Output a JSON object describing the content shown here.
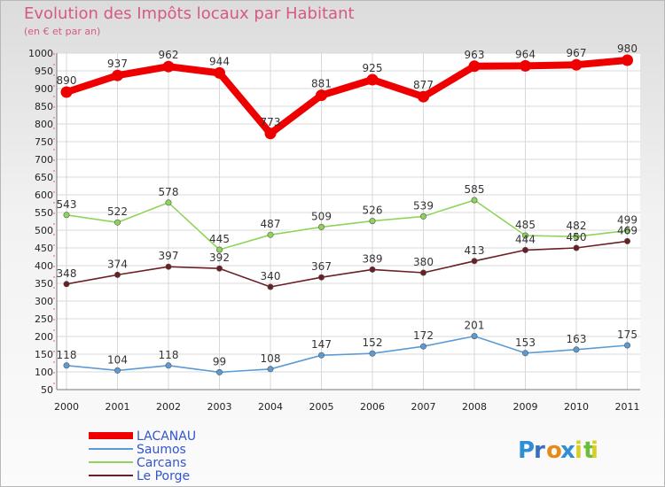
{
  "chart_data": {
    "type": "line",
    "title": "Evolution des Impôts locaux par Habitant",
    "subtitle": "(en € et par an)",
    "x": [
      "2000",
      "2001",
      "2002",
      "2003",
      "2004",
      "2005",
      "2006",
      "2007",
      "2008",
      "2009",
      "2010",
      "2011"
    ],
    "ylim": [
      50,
      1000
    ],
    "yticks": [
      50,
      100,
      150,
      200,
      250,
      300,
      350,
      400,
      450,
      500,
      550,
      600,
      650,
      700,
      750,
      800,
      850,
      900,
      950,
      1000
    ],
    "grid": true,
    "legend_position": "bottom-left",
    "series": [
      {
        "name": "LACANAU",
        "color": "#ee0000",
        "values": [
          890,
          937,
          962,
          944,
          773,
          881,
          925,
          877,
          963,
          964,
          967,
          980
        ]
      },
      {
        "name": "Saumos",
        "color": "#5b9bd5",
        "values": [
          118,
          104,
          118,
          99,
          108,
          147,
          152,
          172,
          201,
          153,
          163,
          175
        ]
      },
      {
        "name": "Carcans",
        "color": "#8fd45a",
        "values": [
          543,
          522,
          578,
          445,
          487,
          509,
          526,
          539,
          585,
          485,
          482,
          499
        ]
      },
      {
        "name": "Le Porge",
        "color": "#6b1e24",
        "values": [
          348,
          374,
          397,
          392,
          340,
          367,
          389,
          380,
          413,
          444,
          450,
          469
        ]
      }
    ]
  },
  "branding": {
    "logo_text": "Proxiti",
    "letter_colors": [
      "#2e8fd6",
      "#3a6fc0",
      "#e88a1a",
      "#2e8fd6",
      "#d8d020",
      "#6abf3a",
      "#d8d020"
    ]
  }
}
